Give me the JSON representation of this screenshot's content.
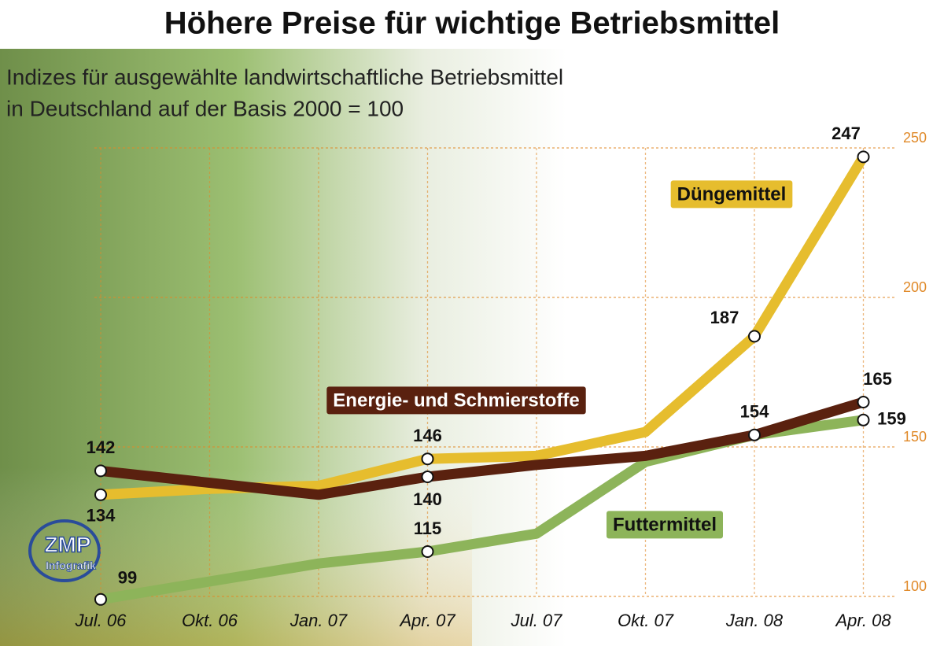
{
  "chart_data": {
    "type": "line",
    "title": "Höhere Preise für wichtige Betriebsmittel",
    "subtitle": [
      "Indizes für ausgewählte landwirtschaftliche Betriebsmittel",
      "in Deutschland auf der Basis 2000 = 100"
    ],
    "source": [
      "ZMP",
      "Infografik"
    ],
    "categories": [
      "Jul. 06",
      "Okt. 06",
      "Jan. 07",
      "Apr. 07",
      "Jul. 07",
      "Okt. 07",
      "Jan. 08",
      "Apr. 08"
    ],
    "series": [
      {
        "name": "Düngemittel",
        "color": "#e6bd2e",
        "values": [
          134,
          136,
          137,
          146,
          147,
          155,
          187,
          247
        ],
        "labels": [
          true,
          false,
          false,
          true,
          false,
          false,
          true,
          true
        ]
      },
      {
        "name": "Energie- und Schmierstoffe",
        "color": "#5a210f",
        "values": [
          142,
          138,
          134,
          140,
          144,
          147,
          154,
          165
        ],
        "labels": [
          true,
          false,
          false,
          true,
          false,
          false,
          true,
          true
        ]
      },
      {
        "name": "Futtermittel",
        "color": "#8db45a",
        "values": [
          99,
          105,
          111,
          115,
          121,
          145,
          154,
          159
        ],
        "labels": [
          true,
          false,
          false,
          true,
          false,
          false,
          false,
          true
        ]
      }
    ],
    "ylim": [
      100,
      250
    ],
    "yticks": [
      100,
      150,
      200,
      250
    ],
    "grid": true,
    "tick_color": "#e08a2a"
  }
}
